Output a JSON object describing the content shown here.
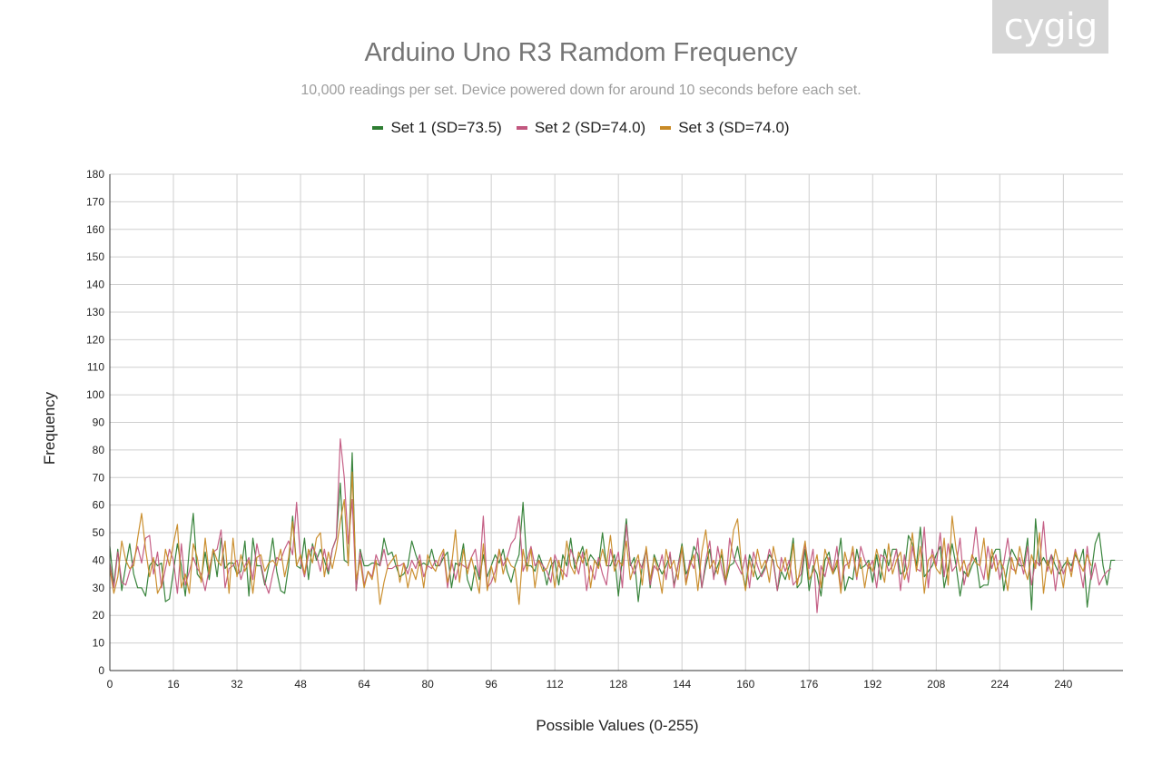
{
  "logo": {
    "text": "cygig"
  },
  "chart_data": {
    "type": "line",
    "title": "Arduino Uno R3 Ramdom Frequency",
    "subtitle": "10,000 readings per set. Device powered down for around 10 seconds before each set.",
    "xlabel": "Possible Values (0-255)",
    "ylabel": "Frequency",
    "xlim": [
      0,
      255
    ],
    "ylim": [
      0,
      180
    ],
    "x_ticks": [
      "0",
      "16",
      "32",
      "48",
      "64",
      "80",
      "96",
      "112",
      "128",
      "144",
      "160",
      "176",
      "192",
      "208",
      "224",
      "240"
    ],
    "y_ticks": [
      "0",
      "10",
      "20",
      "30",
      "40",
      "50",
      "60",
      "70",
      "80",
      "90",
      "100",
      "110",
      "120",
      "130",
      "140",
      "150",
      "160",
      "170",
      "180"
    ],
    "grid": true,
    "legend_position": "top",
    "series": [
      {
        "name": "Set 1 (SD=73.5)",
        "color": "#2e7d32",
        "values": [
          45,
          31,
          44,
          29,
          38,
          46,
          35,
          30,
          30,
          27,
          38,
          40,
          38,
          39,
          25,
          26,
          36,
          46,
          38,
          27,
          44,
          57,
          35,
          33,
          43,
          33,
          44,
          34,
          48,
          37,
          39,
          39,
          35,
          36,
          47,
          27,
          48,
          38,
          38,
          31,
          38,
          48,
          36,
          29,
          28,
          38,
          56,
          38,
          37,
          48,
          33,
          46,
          40,
          44,
          40,
          35,
          44,
          48,
          68,
          40,
          39,
          79,
          29,
          44,
          38,
          38,
          39,
          39,
          38,
          48,
          42,
          43,
          38,
          34,
          35,
          38,
          47,
          42,
          38,
          39,
          38,
          44,
          38,
          38,
          41,
          43,
          30,
          39,
          38,
          46,
          33,
          29,
          38,
          33,
          42,
          34,
          38,
          42,
          39,
          44,
          36,
          32,
          38,
          42,
          61,
          38,
          38,
          36,
          42,
          38,
          31,
          38,
          40,
          31,
          42,
          38,
          48,
          37,
          41,
          45,
          38,
          42,
          40,
          38,
          50,
          38,
          38,
          42,
          27,
          41,
          55,
          38,
          41,
          25,
          38,
          44,
          30,
          42,
          38,
          35,
          38,
          42,
          31,
          38,
          46,
          35,
          38,
          45,
          42,
          30,
          38,
          44,
          34,
          38,
          42,
          32,
          38,
          39,
          45,
          37,
          30,
          42,
          38,
          33,
          35,
          38,
          42,
          40,
          29,
          36,
          33,
          38,
          48,
          30,
          32,
          44,
          29,
          38,
          35,
          27,
          40,
          43,
          35,
          38,
          48,
          29,
          34,
          33,
          44,
          37,
          38,
          40,
          32,
          42,
          33,
          44,
          38,
          44,
          44,
          35,
          36,
          49,
          46,
          38,
          52,
          34,
          36,
          38,
          42,
          45,
          30,
          37,
          46,
          38,
          27,
          36,
          34,
          38,
          41,
          30,
          31,
          31,
          41,
          44,
          44,
          29,
          38,
          44,
          41,
          38,
          38,
          48,
          22,
          55,
          38,
          41,
          38,
          42,
          38,
          35,
          38,
          40,
          38,
          42,
          39,
          44,
          23,
          35,
          46,
          50,
          38,
          31,
          40,
          40
        ]
      },
      {
        "name": "Set 2 (SD=74.0)",
        "color": "#c2577f",
        "values": [
          39,
          30,
          43,
          32,
          31,
          36,
          40,
          45,
          39,
          48,
          49,
          35,
          43,
          30,
          37,
          44,
          40,
          28,
          46,
          31,
          36,
          41,
          37,
          35,
          29,
          37,
          43,
          44,
          51,
          30,
          37,
          38,
          40,
          33,
          38,
          41,
          33,
          46,
          39,
          32,
          28,
          35,
          41,
          40,
          44,
          47,
          42,
          61,
          40,
          34,
          42,
          45,
          42,
          36,
          44,
          36,
          44,
          48,
          84,
          70,
          46,
          62,
          29,
          43,
          31,
          36,
          34,
          42,
          38,
          44,
          37,
          37,
          38,
          38,
          39,
          35,
          40,
          37,
          42,
          34,
          38,
          37,
          40,
          38,
          43,
          30,
          40,
          33,
          39,
          38,
          37,
          41,
          44,
          34,
          56,
          30,
          32,
          36,
          44,
          38,
          41,
          46,
          48,
          56,
          36,
          40,
          45,
          38,
          40,
          38,
          36,
          32,
          42,
          38,
          36,
          34,
          44,
          40,
          35,
          43,
          29,
          38,
          33,
          41,
          35,
          31,
          44,
          38,
          43,
          30,
          53,
          39,
          35,
          40,
          37,
          44,
          31,
          38,
          36,
          42,
          33,
          43,
          30,
          38,
          44,
          32,
          40,
          37,
          48,
          30,
          40,
          47,
          33,
          45,
          37,
          31,
          48,
          41,
          38,
          35,
          42,
          30,
          43,
          38,
          34,
          37,
          44,
          39,
          29,
          41,
          36,
          40,
          31,
          33,
          35,
          46,
          37,
          44,
          21,
          38,
          34,
          41,
          36,
          45,
          30,
          38,
          39,
          43,
          33,
          45,
          40,
          37,
          40,
          30,
          42,
          41,
          36,
          38,
          44,
          29,
          42,
          32,
          45,
          37,
          36,
          52,
          30,
          44,
          38,
          50,
          34,
          46,
          36,
          38,
          48,
          31,
          38,
          40,
          52,
          38,
          33,
          45,
          37,
          42,
          33,
          39,
          48,
          37,
          36,
          41,
          35,
          45,
          31,
          40,
          38,
          54,
          36,
          42,
          29,
          40,
          35,
          39,
          36,
          44,
          38,
          30,
          45,
          33,
          39,
          31,
          34,
          36,
          37
        ]
      },
      {
        "name": "Set 3 (SD=74.0)",
        "color": "#c88a26",
        "values": [
          37,
          28,
          34,
          47,
          40,
          37,
          38,
          48,
          57,
          44,
          34,
          41,
          28,
          31,
          44,
          38,
          46,
          53,
          30,
          35,
          28,
          46,
          41,
          32,
          48,
          35,
          44,
          40,
          38,
          47,
          28,
          48,
          34,
          42,
          36,
          40,
          28,
          41,
          42,
          36,
          39,
          40,
          38,
          44,
          34,
          41,
          54,
          38,
          42,
          35,
          44,
          39,
          48,
          50,
          34,
          43,
          37,
          44,
          54,
          62,
          38,
          72,
          33,
          40,
          30,
          36,
          33,
          40,
          24,
          32,
          38,
          40,
          42,
          32,
          39,
          30,
          37,
          33,
          40,
          30,
          42,
          38,
          36,
          41,
          44,
          32,
          38,
          51,
          32,
          44,
          35,
          41,
          35,
          28,
          46,
          29,
          38,
          32,
          44,
          35,
          41,
          38,
          37,
          24,
          44,
          36,
          44,
          30,
          40,
          36,
          37,
          41,
          30,
          40,
          33,
          47,
          38,
          35,
          43,
          39,
          44,
          30,
          40,
          37,
          44,
          38,
          49,
          36,
          40,
          38,
          47,
          33,
          38,
          42,
          31,
          45,
          33,
          41,
          36,
          28,
          44,
          37,
          40,
          33,
          45,
          31,
          38,
          42,
          29,
          43,
          51,
          37,
          40,
          35,
          44,
          33,
          39,
          51,
          55,
          38,
          29,
          40,
          34,
          44,
          37,
          40,
          32,
          45,
          38,
          36,
          41,
          33,
          46,
          31,
          39,
          47,
          33,
          36,
          42,
          30,
          44,
          39,
          35,
          40,
          28,
          43,
          37,
          45,
          34,
          41,
          30,
          39,
          36,
          44,
          38,
          32,
          46,
          35,
          40,
          43,
          33,
          38,
          50,
          36,
          45,
          28,
          40,
          42,
          37,
          35,
          48,
          31,
          56,
          44,
          36,
          40,
          34,
          42,
          39,
          38,
          48,
          33,
          44,
          36,
          40,
          37,
          29,
          41,
          35,
          45,
          38,
          33,
          42,
          37,
          50,
          28,
          40,
          35,
          44,
          38,
          30,
          41,
          34,
          43,
          39,
          36,
          42,
          38
        ]
      }
    ]
  }
}
